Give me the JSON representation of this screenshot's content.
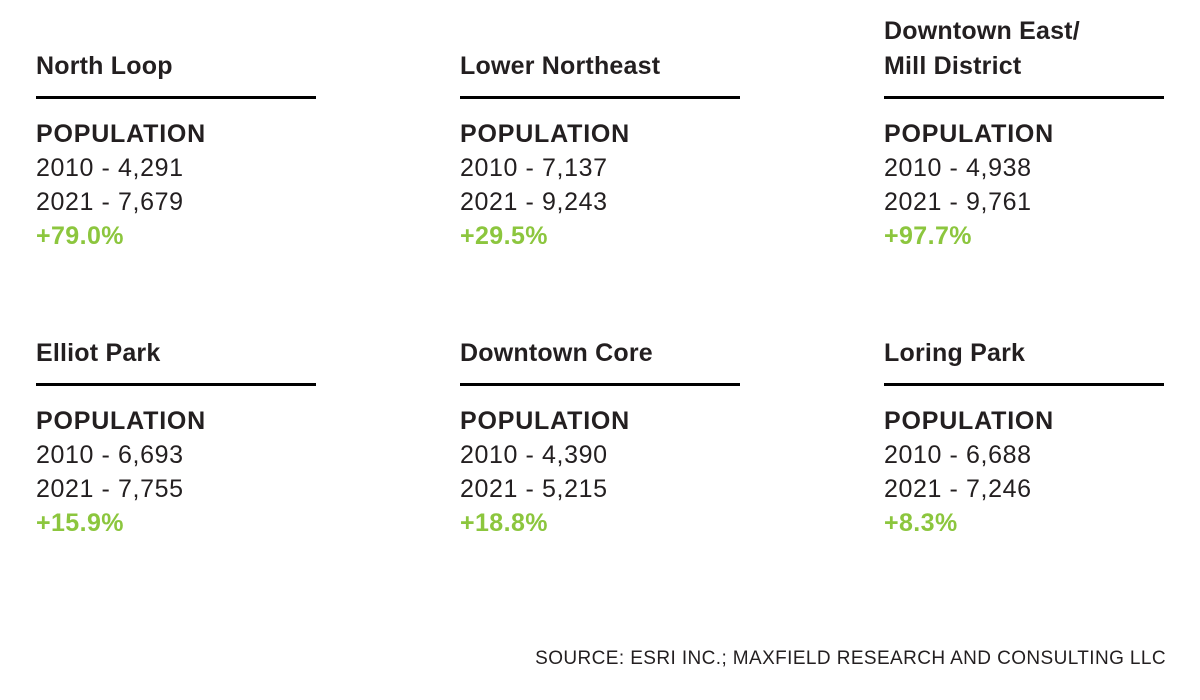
{
  "page": {
    "background": "#ffffff",
    "text_color": "#231f20",
    "accent_green": "#8cc63e",
    "source": "SOURCE: ESRI INC.; MAXFIELD RESEARCH AND CONSULTING LLC"
  },
  "cards": [
    {
      "title": "North Loop",
      "label": "POPULATION",
      "stats": [
        "2010 - 4,291",
        "2021 - 7,679"
      ],
      "change": "+79.0%"
    },
    {
      "title": "Lower Northeast",
      "label": "POPULATION",
      "stats": [
        "2010 - 7,137",
        "2021 - 9,243"
      ],
      "change": "+29.5%"
    },
    {
      "title": "Downtown East/\nMill District",
      "label": "POPULATION",
      "stats": [
        "2010 - 4,938",
        "2021 - 9,761"
      ],
      "change": "+97.7%"
    },
    {
      "title": "Elliot Park",
      "label": "POPULATION",
      "stats": [
        "2010 - 6,693",
        "2021 - 7,755"
      ],
      "change": "+15.9%"
    },
    {
      "title": "Downtown Core",
      "label": "POPULATION",
      "stats": [
        "2010 - 4,390",
        "2021 - 5,215"
      ],
      "change": "+18.8%"
    },
    {
      "title": "Loring Park",
      "label": "POPULATION",
      "stats": [
        "2010 - 6,688",
        "2021 - 7,246"
      ],
      "change": "+8.3%"
    }
  ]
}
